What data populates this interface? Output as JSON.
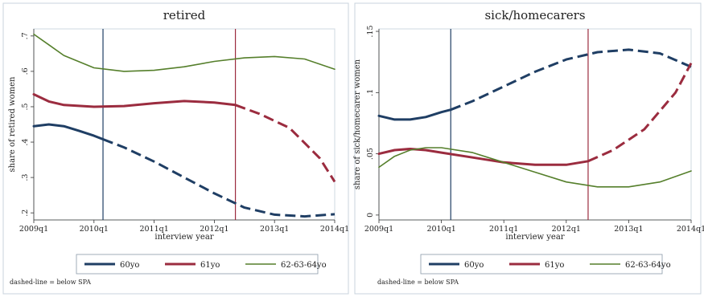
{
  "chart_data": [
    {
      "type": "line",
      "title": "retired",
      "xlabel": "interview year",
      "ylabel": "share of retired women",
      "x_ticks": [
        "2009q1",
        "2010q1",
        "2011q1",
        "2012q1",
        "2013q1",
        "2014q1"
      ],
      "y_ticks": [
        0.2,
        0.3,
        0.4,
        0.5,
        0.6,
        0.7
      ],
      "y_tick_labels": [
        ".2",
        ".3",
        ".4",
        ".5",
        ".6",
        ".7"
      ],
      "xlim": [
        0,
        20
      ],
      "ylim": [
        0.18,
        0.72
      ],
      "vlines": [
        {
          "x": 4.6,
          "color": "#1f3e64"
        },
        {
          "x": 13.4,
          "color": "#9b2c3f"
        }
      ],
      "series": [
        {
          "name": "60yo",
          "color": "#1f3e64",
          "width": 3,
          "x": [
            0,
            1,
            2,
            3,
            4,
            4.6,
            6,
            8,
            10,
            12,
            14,
            16,
            18,
            20
          ],
          "y": [
            0.445,
            0.45,
            0.445,
            0.432,
            0.418,
            0.408,
            0.385,
            0.345,
            0.3,
            0.255,
            0.215,
            0.195,
            0.19,
            0.196
          ],
          "dashed_from_x": 4.6
        },
        {
          "name": "61yo",
          "color": "#9b2c3f",
          "width": 3,
          "x": [
            0,
            1,
            2,
            4,
            6,
            8,
            10,
            12,
            13.4,
            15,
            17,
            19,
            20
          ],
          "y": [
            0.535,
            0.515,
            0.505,
            0.5,
            0.502,
            0.51,
            0.516,
            0.512,
            0.505,
            0.48,
            0.44,
            0.355,
            0.288
          ],
          "dashed_from_x": 13.4
        },
        {
          "name": "62-63-64yo",
          "color": "#557f2b",
          "width": 1.6,
          "x": [
            0,
            1,
            2,
            4,
            6,
            8,
            10,
            12,
            14,
            16,
            18,
            20
          ],
          "y": [
            0.705,
            0.675,
            0.645,
            0.61,
            0.6,
            0.603,
            0.613,
            0.628,
            0.638,
            0.642,
            0.635,
            0.606
          ]
        }
      ],
      "legend": [
        "60yo",
        "61yo",
        "62-63-64yo"
      ],
      "note": "dashed-line = below SPA"
    },
    {
      "type": "line",
      "title": "sick/homecarers",
      "xlabel": "interview year",
      "ylabel": "share of sick/homecarer women",
      "x_ticks": [
        "2009q1",
        "2010q1",
        "2011q1",
        "2012q1",
        "2013q1",
        "2014q1"
      ],
      "y_ticks": [
        0,
        0.05,
        0.1,
        0.15
      ],
      "y_tick_labels": [
        "0",
        ".05",
        ".1",
        ".15"
      ],
      "xlim": [
        0,
        20
      ],
      "ylim": [
        -0.004,
        0.152
      ],
      "vlines": [
        {
          "x": 4.6,
          "color": "#1f3e64"
        },
        {
          "x": 13.4,
          "color": "#9b2c3f"
        }
      ],
      "series": [
        {
          "name": "60yo",
          "color": "#1f3e64",
          "width": 3,
          "x": [
            0,
            1,
            2,
            3,
            4,
            4.6,
            6,
            8,
            10,
            12,
            14,
            16,
            18,
            20
          ],
          "y": [
            0.081,
            0.078,
            0.078,
            0.08,
            0.084,
            0.086,
            0.093,
            0.105,
            0.117,
            0.127,
            0.133,
            0.135,
            0.132,
            0.121
          ],
          "dashed_from_x": 4.6
        },
        {
          "name": "61yo",
          "color": "#9b2c3f",
          "width": 3,
          "x": [
            0,
            1,
            2,
            3,
            4,
            6,
            8,
            10,
            12,
            13.4,
            15,
            17,
            19,
            20
          ],
          "y": [
            0.05,
            0.053,
            0.054,
            0.053,
            0.051,
            0.047,
            0.043,
            0.041,
            0.041,
            0.044,
            0.053,
            0.07,
            0.1,
            0.124
          ],
          "dashed_from_x": 13.4
        },
        {
          "name": "62-63-64yo",
          "color": "#557f2b",
          "width": 1.6,
          "x": [
            0,
            1,
            2,
            3,
            4,
            6,
            8,
            10,
            12,
            14,
            16,
            18,
            20
          ],
          "y": [
            0.039,
            0.048,
            0.053,
            0.055,
            0.055,
            0.051,
            0.043,
            0.035,
            0.027,
            0.023,
            0.023,
            0.027,
            0.036
          ]
        }
      ],
      "legend": [
        "60yo",
        "61yo",
        "62-63-64yo"
      ],
      "note": "dashed-line = below SPA"
    }
  ]
}
